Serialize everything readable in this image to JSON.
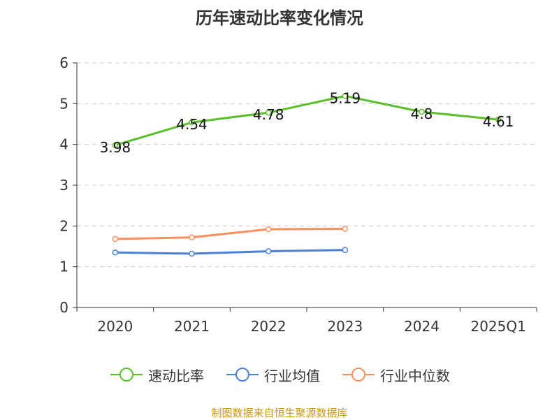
{
  "title": "历年速动比率变化情况",
  "source": "制图数据来自恒生聚源数据库",
  "colors": {
    "series_speed": "#5bbf2a",
    "series_avg": "#4b7fd8",
    "series_median": "#f88f5c",
    "source_text": "#c8960f",
    "axis": "#333333",
    "grid": "#cccccc"
  },
  "chart_data": {
    "type": "line",
    "title": "历年速动比率变化情况",
    "categories": [
      "2020",
      "2021",
      "2022",
      "2023",
      "2024",
      "2025Q1"
    ],
    "ylim": [
      0,
      6
    ],
    "yticks": [
      "0",
      "1",
      "2",
      "3",
      "4",
      "5",
      "6"
    ],
    "grid": "horizontal-dashed",
    "legend_position": "bottom",
    "series": [
      {
        "name": "速动比率",
        "values": [
          3.98,
          4.54,
          4.78,
          5.19,
          4.8,
          4.61
        ],
        "labels": [
          "3.98",
          "4.54",
          "4.78",
          "5.19",
          "4.8",
          "4.61"
        ],
        "color": "#5bbf2a"
      },
      {
        "name": "行业均值",
        "values": [
          1.35,
          1.32,
          1.38,
          1.41,
          null,
          null
        ],
        "color": "#4b7fd8"
      },
      {
        "name": "行业中位数",
        "values": [
          1.68,
          1.72,
          1.92,
          1.93,
          null,
          null
        ],
        "color": "#f88f5c"
      }
    ]
  }
}
